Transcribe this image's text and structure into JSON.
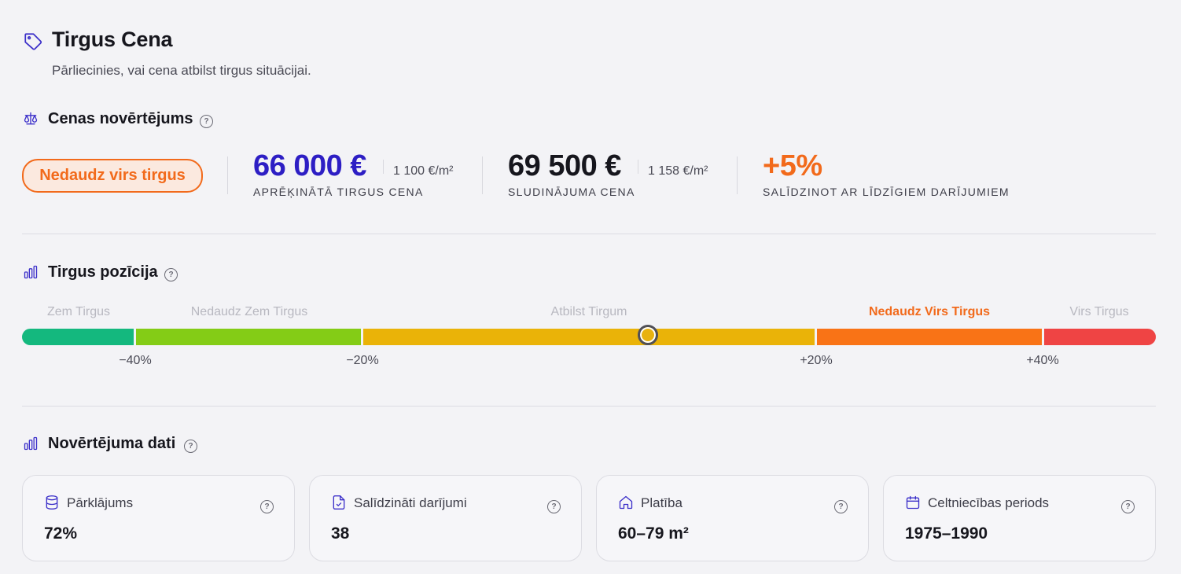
{
  "header": {
    "title": "Tirgus Cena",
    "subtitle": "Pārliecinies, vai cena atbilst tirgus situācijai."
  },
  "valuation": {
    "title": "Cenas novērtējums",
    "help": "?",
    "badge": "Nedaudz virs tirgus",
    "market_price": "66 000 €",
    "market_price_per_m2": "1 100 €/m²",
    "market_price_label": "APRĒĶINĀTĀ TIRGUS CENA",
    "listing_price": "69 500 €",
    "listing_price_per_m2": "1 158 €/m²",
    "listing_price_label": "SLUDINĀJUMA CENA",
    "difference": "+5%",
    "difference_label": "SALĪDZINOT AR LĪDZĪGIEM DARĪJUMIEM"
  },
  "position": {
    "title": "Tirgus pozīcija",
    "help": "?",
    "labels": [
      "Zem Tirgus",
      "Nedaudz Zem Tirgus",
      "Atbilst Tirgum",
      "Nedaudz Virs Tirgus",
      "Virs Tirgus"
    ],
    "active_label_index": 3,
    "ticks": [
      "−40%",
      "−20%",
      "+20%",
      "+40%"
    ],
    "marker_value_percent": 5,
    "colors": {
      "zem": "#14b87e",
      "nedaudz_zem": "#84cc16",
      "atbilst": "#eab308",
      "nedaudz_virs": "#f97316",
      "virs": "#ef4444",
      "accent": "#3b2fc9",
      "orange": "#f26a1b"
    }
  },
  "data_section": {
    "title": "Novērtējuma dati",
    "help": "?",
    "cards": [
      {
        "label": "Pārklājums",
        "value": "72%",
        "icon": "database-icon"
      },
      {
        "label": "Salīdzināti darījumi",
        "value": "38",
        "icon": "document-check-icon"
      },
      {
        "label": "Platība",
        "value": "60–79 m²",
        "icon": "home-icon"
      },
      {
        "label": "Celtniecības periods",
        "value": "1975–1990",
        "icon": "calendar-icon"
      }
    ]
  }
}
